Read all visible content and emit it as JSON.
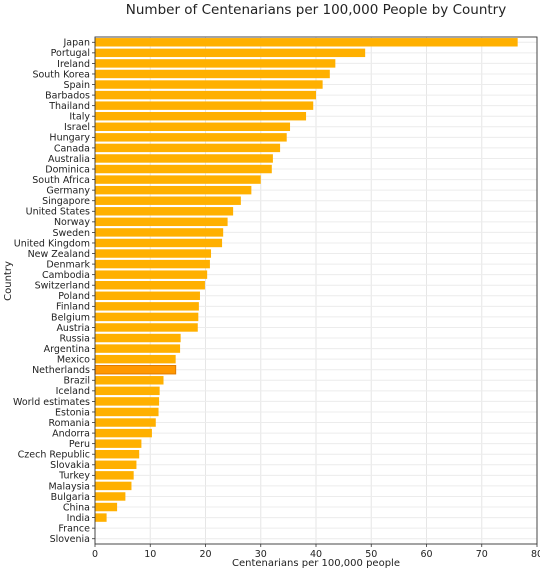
{
  "chart_data": {
    "type": "bar",
    "orientation": "horizontal",
    "title": "Number of Centenarians per 100,000 People by Country",
    "xlabel": "Centenarians per 100,000 people",
    "ylabel": "Country",
    "xlim": [
      0,
      80
    ],
    "xticks": [
      0,
      10,
      20,
      30,
      40,
      50,
      60,
      70,
      80
    ],
    "grid": true,
    "bar_color": "#FFB000",
    "highlight_color": "#FF9800",
    "categories": [
      "Japan",
      "Portugal",
      "Ireland",
      "South Korea",
      "Spain",
      "Barbados",
      "Thailand",
      "Italy",
      "Israel",
      "Hungary",
      "Canada",
      "Australia",
      "Dominica",
      "South Africa",
      "Germany",
      "Singapore",
      "United States",
      "Norway",
      "Sweden",
      "United Kingdom",
      "New Zealand",
      "Denmark",
      "Cambodia",
      "Switzerland",
      "Poland",
      "Finland",
      "Belgium",
      "Austria",
      "Russia",
      "Argentina",
      "Mexico",
      "Netherlands",
      "Brazil",
      "Iceland",
      "World estimates",
      "Estonia",
      "Romania",
      "Andorra",
      "Peru",
      "Czech Republic",
      "Slovakia",
      "Turkey",
      "Malaysia",
      "Bulgaria",
      "China",
      "India",
      "France",
      "Slovenia"
    ],
    "values": [
      76.5,
      48.9,
      43.5,
      42.5,
      41.2,
      40.0,
      39.5,
      38.2,
      35.3,
      34.7,
      33.5,
      32.2,
      32.0,
      30.0,
      28.3,
      26.4,
      25.0,
      24.0,
      23.2,
      23.0,
      21.0,
      20.8,
      20.3,
      19.9,
      19.0,
      18.8,
      18.7,
      18.6,
      15.5,
      15.4,
      14.6,
      14.6,
      12.4,
      11.7,
      11.6,
      11.5,
      11.0,
      10.3,
      8.4,
      8.0,
      7.5,
      7.0,
      6.6,
      5.5,
      4.0,
      2.1,
      0,
      0
    ],
    "highlight": [
      "Netherlands"
    ]
  }
}
